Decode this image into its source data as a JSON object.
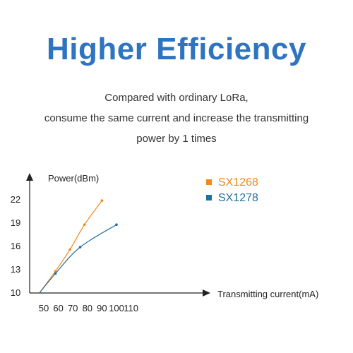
{
  "header": {
    "title": "Higher Efficiency",
    "subtitle_lines": [
      "Compared with ordinary LoRa,",
      "consume the same current and increase the transmitting",
      "power by 1 times"
    ]
  },
  "chart_data": {
    "type": "line",
    "xlabel": "Transmitting current(mA)",
    "ylabel": "Power(dBm)",
    "xlim": [
      50,
      110
    ],
    "ylim": [
      10,
      22
    ],
    "x_ticks": [
      "50",
      "60",
      "70",
      "80",
      "90",
      "100",
      "110"
    ],
    "y_ticks": [
      "10",
      "13",
      "16",
      "19",
      "22"
    ],
    "legend_placement": "top-right",
    "grid": false,
    "series": [
      {
        "name": "SX1268",
        "color": "#f08a1c",
        "x": [
          47,
          58,
          68,
          78,
          90
        ],
        "y": [
          10,
          12.8,
          15.6,
          18.8,
          21.9
        ]
      },
      {
        "name": "SX1278",
        "color": "#1f6fa0",
        "x": [
          47,
          58,
          75,
          100
        ],
        "y": [
          10,
          12.5,
          15.9,
          18.8
        ]
      }
    ]
  }
}
